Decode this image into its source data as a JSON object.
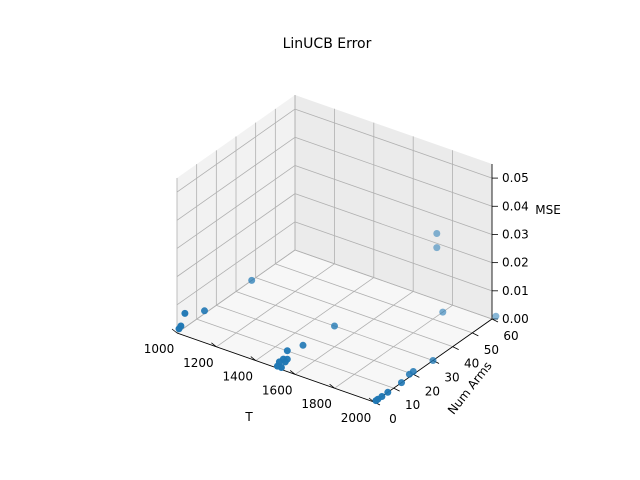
{
  "chart_data": {
    "type": "scatter3d",
    "title": "LinUCB Error",
    "xlabel": "T",
    "ylabel": "Num Arms",
    "zlabel": "MSE",
    "xlim": [
      1000,
      2000
    ],
    "ylim": [
      0,
      60
    ],
    "zlim": [
      0,
      0.055
    ],
    "x_ticks": [
      "1000",
      "1200",
      "1400",
      "1600",
      "1800",
      "2000"
    ],
    "y_ticks": [
      "0",
      "10",
      "20",
      "30",
      "40",
      "50",
      "60"
    ],
    "z_ticks": [
      "0.00",
      "0.01",
      "0.02",
      "0.03",
      "0.04",
      "0.05"
    ],
    "grid": true,
    "marker_color": "#1f77b4",
    "points": [
      {
        "x": 1000,
        "y": 4,
        "z": 0.005
      },
      {
        "x": 1000,
        "y": 2,
        "z": 0.0015
      },
      {
        "x": 1000,
        "y": 1,
        "z": 0.001
      },
      {
        "x": 1000,
        "y": 14,
        "z": 0.001
      },
      {
        "x": 1000,
        "y": 38,
        "z": 0.0
      },
      {
        "x": 1500,
        "y": 6,
        "z": 0.003
      },
      {
        "x": 1500,
        "y": 6,
        "z": 0.0
      },
      {
        "x": 1500,
        "y": 4,
        "z": 0.001
      },
      {
        "x": 1500,
        "y": 2,
        "z": 0.001
      },
      {
        "x": 1500,
        "y": 1,
        "z": 0.0
      },
      {
        "x": 1520,
        "y": 3,
        "z": 0.001
      },
      {
        "x": 1520,
        "y": 1,
        "z": 0.0
      },
      {
        "x": 1500,
        "y": 14,
        "z": 0.001
      },
      {
        "x": 1500,
        "y": 30,
        "z": 0.0
      },
      {
        "x": 2000,
        "y": 20,
        "z": 0.001
      },
      {
        "x": 2000,
        "y": 18,
        "z": 0.001
      },
      {
        "x": 2000,
        "y": 14,
        "z": 0.0
      },
      {
        "x": 2000,
        "y": 7,
        "z": 0.0
      },
      {
        "x": 2000,
        "y": 4,
        "z": 0.0
      },
      {
        "x": 2000,
        "y": 2,
        "z": 0.0
      },
      {
        "x": 2000,
        "y": 1,
        "z": 0.0
      },
      {
        "x": 2000,
        "y": 30,
        "z": 0.0
      },
      {
        "x": 2000,
        "y": 62,
        "z": 0.0
      },
      {
        "x": 1700,
        "y": 62,
        "z": 0.017
      },
      {
        "x": 1700,
        "y": 62,
        "z": 0.022
      },
      {
        "x": 1800,
        "y": 55,
        "z": 0.0
      }
    ]
  }
}
